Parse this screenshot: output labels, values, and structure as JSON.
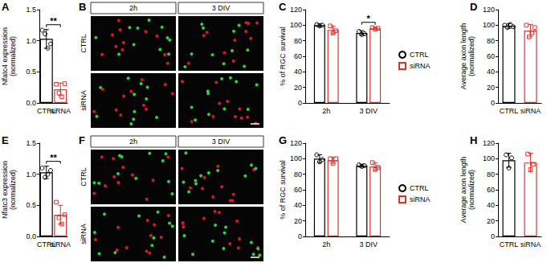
{
  "chart_data": [
    {
      "panel": "A",
      "type": "bar",
      "y_label": "Nfatc4 expression\n(normalized)",
      "categories": [
        "CTRL",
        "siRNA"
      ],
      "ylim": [
        0,
        1.5
      ],
      "yticks": [
        {
          "value": 0,
          "label": "0.0"
        },
        {
          "value": 0.5,
          "label": "0.5"
        },
        {
          "value": 1,
          "label": "1.0"
        },
        {
          "value": 1.5,
          "label": "1.5"
        }
      ],
      "grid": false,
      "series": [
        {
          "name": "CTRL",
          "color": "#000000",
          "marker": "circle",
          "values": [
            1.03,
            null
          ],
          "errors": [
            0.15,
            null
          ],
          "points": [
            [
              1.17,
              1.11,
              0.88,
              0.95
            ],
            null
          ]
        },
        {
          "name": "siRNA",
          "color": "#e8302a",
          "marker": "square",
          "values": [
            null,
            0.22
          ],
          "errors": [
            null,
            0.1
          ],
          "points": [
            null,
            [
              0.3,
              0.16,
              0.1,
              0.31
            ]
          ]
        }
      ],
      "annotations": [
        {
          "text": "**",
          "from": [
            "CTRL",
            "CTRL"
          ],
          "to": [
            "siRNA",
            "siRNA"
          ]
        }
      ]
    },
    {
      "panel": "B",
      "type": "image",
      "columns": [
        "2h",
        "3 DIV"
      ],
      "rows": [
        "CTRL",
        "siRNA"
      ]
    },
    {
      "panel": "C",
      "type": "bar",
      "y_label": "% of RGC survival",
      "categories": [
        "2h",
        "3 DIV"
      ],
      "ylim": [
        0,
        120
      ],
      "yticks": [
        0,
        20,
        40,
        60,
        80,
        100,
        120
      ],
      "grid": false,
      "legend": "right",
      "series": [
        {
          "name": "CTRL",
          "color": "#000000",
          "marker": "circle",
          "values": [
            100,
            90
          ],
          "errors": [
            2,
            3
          ],
          "points": [
            [
              101,
              99,
              100
            ],
            [
              92,
              88,
              89
            ]
          ]
        },
        {
          "name": "siRNA",
          "color": "#e8302a",
          "marker": "square",
          "values": [
            94,
            96
          ],
          "errors": [
            5,
            1.5
          ],
          "points": [
            [
              99,
              90,
              93
            ],
            [
              97,
              95,
              96
            ]
          ]
        }
      ],
      "annotations": [
        {
          "text": "*",
          "from": [
            "3 DIV",
            "CTRL"
          ],
          "to": [
            "3 DIV",
            "siRNA"
          ]
        }
      ]
    },
    {
      "panel": "D",
      "type": "bar",
      "y_label": "Average axon length\n(normalized)",
      "categories": [
        "CTRL",
        "siRNA"
      ],
      "ylim": [
        0,
        120
      ],
      "yticks": [
        0,
        20,
        40,
        60,
        80,
        100,
        120
      ],
      "grid": false,
      "series": [
        {
          "name": "CTRL",
          "color": "#000000",
          "marker": "circle",
          "values": [
            99,
            null
          ],
          "errors": [
            3,
            null
          ],
          "points": [
            [
              100,
              97,
              101,
              98
            ],
            null
          ]
        },
        {
          "name": "siRNA",
          "color": "#e8302a",
          "marker": "square",
          "values": [
            null,
            93
          ],
          "errors": [
            null,
            8
          ],
          "points": [
            null,
            [
              100,
              85,
              90,
              97
            ]
          ]
        }
      ]
    },
    {
      "panel": "E",
      "type": "bar",
      "y_label": "Nfatc3 expression\n(normalized)",
      "categories": [
        "CTRL",
        "siRNA"
      ],
      "ylim": [
        0,
        1.5
      ],
      "yticks": [
        {
          "value": 0,
          "label": "0.0"
        },
        {
          "value": 0.5,
          "label": "0.5"
        },
        {
          "value": 1,
          "label": "1.0"
        },
        {
          "value": 1.5,
          "label": "1.5"
        }
      ],
      "grid": false,
      "series": [
        {
          "name": "CTRL",
          "color": "#000000",
          "marker": "circle",
          "values": [
            1.03,
            null
          ],
          "errors": [
            0.1,
            null
          ],
          "points": [
            [
              1.1,
              0.95,
              1.0,
              1.06
            ],
            null
          ]
        },
        {
          "name": "siRNA",
          "color": "#e8302a",
          "marker": "square",
          "values": [
            null,
            0.35
          ],
          "errors": [
            null,
            0.15
          ],
          "points": [
            null,
            [
              0.55,
              0.3,
              0.2,
              0.35
            ]
          ]
        }
      ],
      "annotations": [
        {
          "text": "**",
          "from": [
            "CTRL",
            "CTRL"
          ],
          "to": [
            "siRNA",
            "siRNA"
          ]
        }
      ]
    },
    {
      "panel": "F",
      "type": "image",
      "columns": [
        "2h",
        "3 DIV"
      ],
      "rows": [
        "CTRL",
        "siRNA"
      ]
    },
    {
      "panel": "G",
      "type": "bar",
      "y_label": "% of RGC survival",
      "categories": [
        "2h",
        "3 DIV"
      ],
      "ylim": [
        0,
        120
      ],
      "yticks": [
        0,
        20,
        40,
        60,
        80,
        100,
        120
      ],
      "grid": false,
      "legend": "right",
      "series": [
        {
          "name": "CTRL",
          "color": "#000000",
          "marker": "circle",
          "values": [
            100,
            91
          ],
          "errors": [
            5,
            2
          ],
          "points": [
            [
              105,
              96,
              99
            ],
            [
              92,
              90,
              91
            ]
          ]
        },
        {
          "name": "siRNA",
          "color": "#e8302a",
          "marker": "square",
          "values": [
            98,
            90
          ],
          "errors": [
            4,
            5
          ],
          "points": [
            [
              100,
              94,
              100
            ],
            [
              95,
              86,
              89
            ]
          ]
        }
      ]
    },
    {
      "panel": "H",
      "type": "bar",
      "y_label": "Average axon length\n(normalized)",
      "categories": [
        "CTRL",
        "siRNA"
      ],
      "ylim": [
        0,
        120
      ],
      "yticks": [
        0,
        20,
        40,
        60,
        80,
        100,
        120
      ],
      "grid": false,
      "series": [
        {
          "name": "CTRL",
          "color": "#000000",
          "marker": "circle",
          "values": [
            98,
            null
          ],
          "errors": [
            9,
            null
          ],
          "points": [
            [
              105,
              88,
              101
            ],
            null
          ]
        },
        {
          "name": "siRNA",
          "color": "#e8302a",
          "marker": "square",
          "values": [
            null,
            95
          ],
          "errors": [
            null,
            12
          ],
          "points": [
            null,
            [
              106,
              86,
              93
            ]
          ]
        }
      ]
    }
  ]
}
